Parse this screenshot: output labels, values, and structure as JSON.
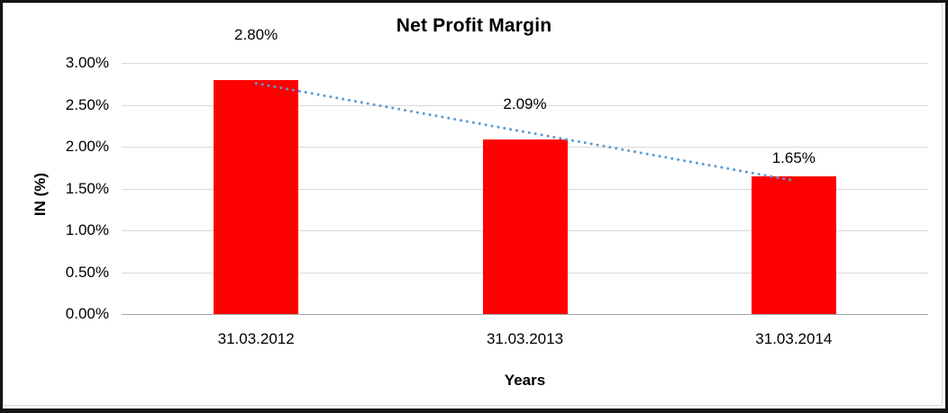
{
  "frame": {
    "background": "#ffffff",
    "outer_border_color": "#141414",
    "chart_border_color": "#d6d6d6"
  },
  "chart_data": {
    "type": "bar",
    "title": "Net Profit Margin",
    "categories": [
      "31.03.2012",
      "31.03.2013",
      "31.03.2014"
    ],
    "values": [
      2.8,
      2.09,
      1.65
    ],
    "data_labels": [
      "2.80%",
      "2.09%",
      "1.65%"
    ],
    "xlabel": "Years",
    "ylabel": "IN (%)",
    "ylim": [
      0,
      3
    ],
    "ytick_step": 0.5,
    "ytick_labels": [
      "0.00%",
      "0.50%",
      "1.00%",
      "1.50%",
      "2.00%",
      "2.50%",
      "3.00%"
    ],
    "grid": true,
    "legend": "none",
    "bar_color": "#ff0000",
    "gridline_color": "#d9d9d9",
    "axis_color": "#a6a6a6",
    "text_color": "#000000",
    "trendline": {
      "style": "dotted",
      "color": "#5b9bd5",
      "from_category": "31.03.2012",
      "to_category": "31.03.2014"
    }
  }
}
